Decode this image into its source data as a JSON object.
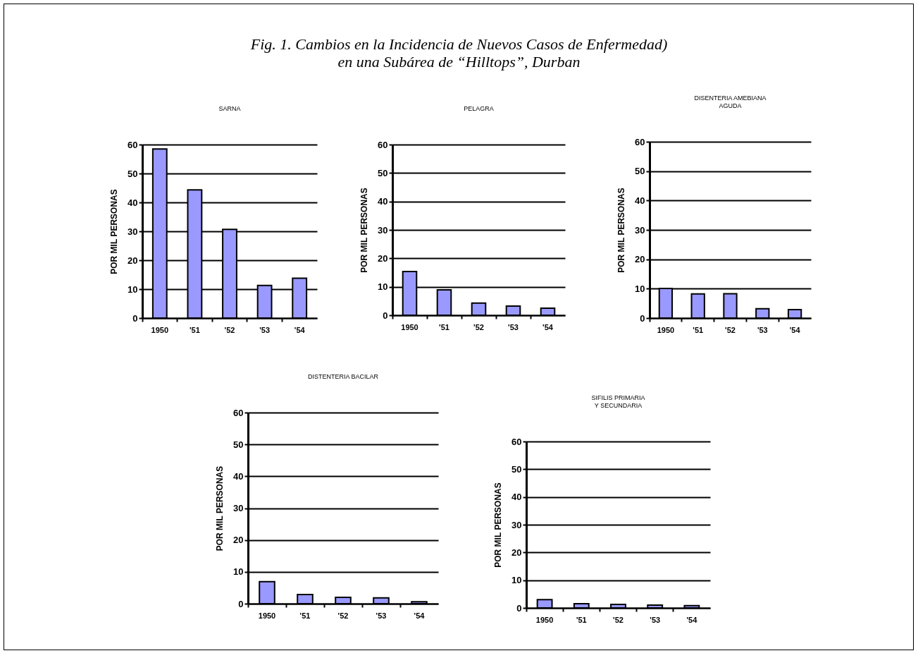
{
  "chart_data": [
    {
      "type": "other",
      "title": "Fig. 1. Cambios en la Incidencia de Nuevos Casos de Enfermedad)\nen una Subárea de “Hilltops”, Durban"
    },
    {
      "type": "bar",
      "title": "SARNA",
      "ylabel": "POR MIL PERSONAS",
      "categories": [
        "1950",
        "'51",
        "'52",
        "'53",
        "'54"
      ],
      "values": [
        58.5,
        44.3,
        30.7,
        11.3,
        13.8
      ],
      "color": "#9999ff",
      "ylim": [
        0,
        60
      ],
      "yticks": [
        0,
        10,
        20,
        30,
        40,
        50,
        60
      ],
      "grid": "y"
    },
    {
      "type": "bar",
      "title": "PELAGRA",
      "ylabel": "POR MIL PERSONAS",
      "categories": [
        "1950",
        "'51",
        "'52",
        "'53",
        "'54"
      ],
      "values": [
        15.4,
        8.9,
        4.3,
        3.2,
        2.5
      ],
      "color": "#9999ff",
      "ylim": [
        0,
        60
      ],
      "yticks": [
        0,
        10,
        20,
        30,
        40,
        50,
        60
      ],
      "grid": "y"
    },
    {
      "type": "bar",
      "title": "DISENTERIA AMEBIANA\nAGUDA",
      "ylabel": "POR MIL PERSONAS",
      "categories": [
        "1950",
        "'51",
        "'52",
        "'53",
        "'54"
      ],
      "values": [
        10.1,
        8.2,
        8.3,
        3.2,
        2.9
      ],
      "color": "#9999ff",
      "ylim": [
        0,
        60
      ],
      "yticks": [
        0,
        10,
        20,
        30,
        40,
        50,
        60
      ],
      "grid": "y"
    },
    {
      "type": "bar",
      "title": "DISTENTERIA BACILAR",
      "ylabel": "POR MIL PERSONAS",
      "categories": [
        "1950",
        "'51",
        "'52",
        "'53",
        "'54"
      ],
      "values": [
        6.9,
        2.9,
        2.0,
        1.8,
        0.6
      ],
      "color": "#9999ff",
      "ylim": [
        0,
        60
      ],
      "yticks": [
        0,
        10,
        20,
        30,
        40,
        50,
        60
      ],
      "grid": "y"
    },
    {
      "type": "bar",
      "title": "SIFILIS PRIMARIA\nY SECUNDARIA",
      "ylabel": "POR MIL PERSONAS",
      "categories": [
        "1950",
        "'51",
        "'52",
        "'53",
        "'54"
      ],
      "values": [
        3.0,
        1.5,
        1.3,
        1.0,
        0.8
      ],
      "color": "#9999ff",
      "ylim": [
        0,
        60
      ],
      "yticks": [
        0,
        10,
        20,
        30,
        40,
        50,
        60
      ],
      "grid": "y"
    }
  ]
}
